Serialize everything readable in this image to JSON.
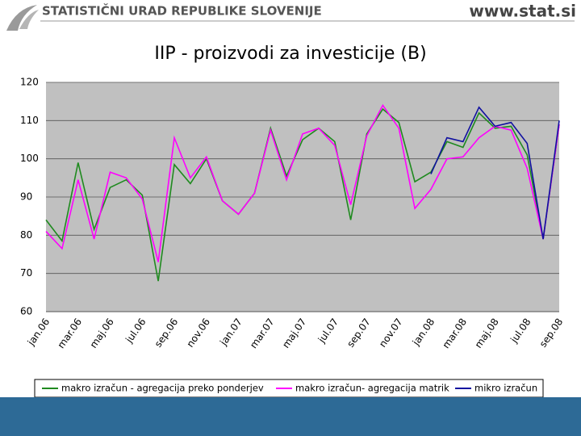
{
  "header": {
    "org": "STATISTIČNI URAD REPUBLIKE SLOVENIJE",
    "url": "www.stat.si"
  },
  "chart_data": {
    "type": "line",
    "title": "IIP - proizvodi za investicije (B)",
    "categories": [
      "jan.06",
      null,
      "mar.06",
      null,
      "maj.06",
      null,
      "jul.06",
      null,
      "sep.06",
      null,
      "nov.06",
      null,
      "jan.07",
      null,
      "mar.07",
      null,
      "maj.07",
      null,
      "jul.07",
      null,
      "sep.07",
      null,
      "nov.07",
      null,
      "jan.08",
      null,
      "mar.08",
      null,
      "maj.08",
      null,
      "jul.08",
      null,
      "sep.08"
    ],
    "series": [
      {
        "name": "makro izračun - agregacija preko ponderjev",
        "color": "#1f8a1f",
        "values": [
          84,
          78.5,
          99,
          81.5,
          92.5,
          94.5,
          90.5,
          68,
          98.5,
          93.5,
          100,
          89,
          85.5,
          91,
          108,
          95.5,
          105,
          108,
          104.5,
          84,
          106.5,
          113,
          109.5,
          94,
          96.5,
          104.5,
          103,
          112,
          108,
          108.5,
          101,
          79,
          109
        ]
      },
      {
        "name": "makro izračun- agregacija matrik",
        "color": "#ff00ff",
        "values": [
          81,
          76.5,
          94.5,
          79,
          96.5,
          95,
          89.5,
          73,
          105.5,
          95,
          100.5,
          89,
          85.5,
          91,
          107.5,
          94.5,
          106.5,
          108,
          103.5,
          88,
          106,
          114,
          108,
          87,
          92,
          100,
          100.5,
          105.5,
          108.5,
          107.5,
          97.5,
          79,
          109
        ]
      },
      {
        "name": "mikro izračun",
        "color": "#1010a0",
        "values": [
          null,
          null,
          null,
          null,
          null,
          null,
          null,
          null,
          null,
          null,
          null,
          null,
          null,
          null,
          null,
          null,
          null,
          null,
          null,
          null,
          null,
          null,
          null,
          null,
          96,
          105.5,
          104.5,
          113.5,
          108.5,
          109.5,
          104,
          79,
          110
        ]
      }
    ],
    "ylim": [
      60,
      120
    ],
    "yticks": [
      60,
      70,
      80,
      90,
      100,
      110,
      120
    ],
    "grid": true,
    "legend": "bottom"
  }
}
